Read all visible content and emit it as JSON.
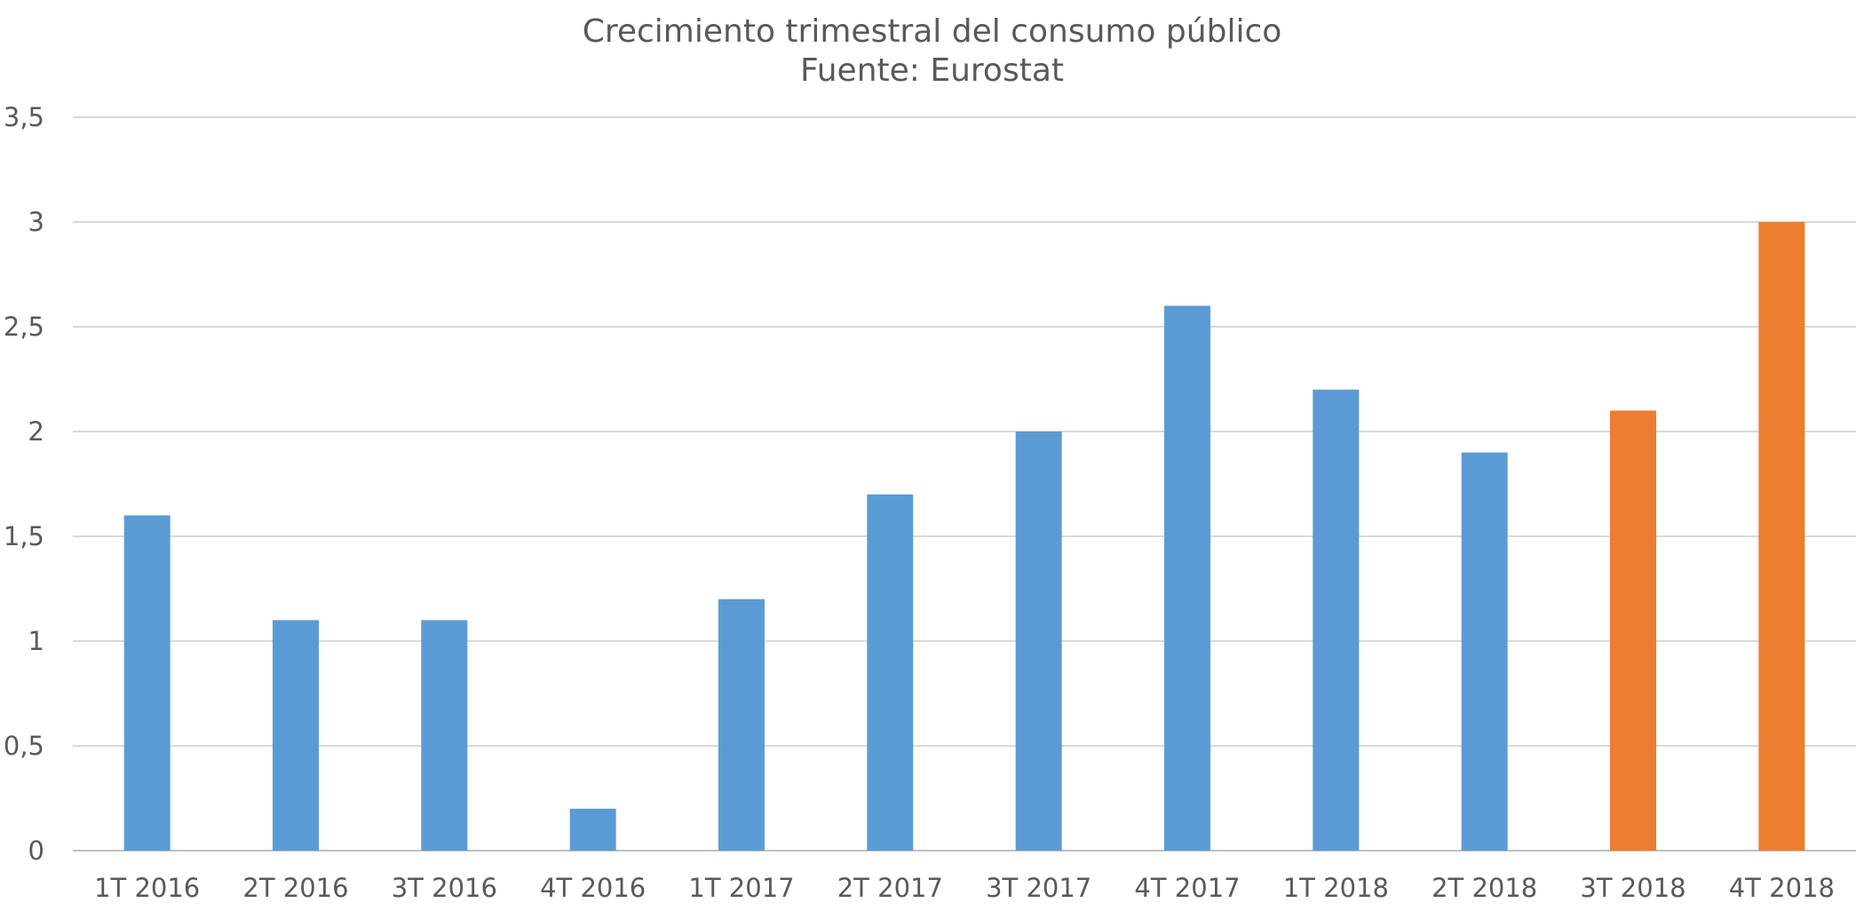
{
  "chart_data": {
    "type": "bar",
    "title": "Crecimiento trimestral del consumo público",
    "subtitle": "Fuente: Eurostat",
    "xlabel": "",
    "ylabel": "",
    "categories": [
      "1T 2016",
      "2T 2016",
      "3T 2016",
      "4T 2016",
      "1T 2017",
      "2T 2017",
      "3T 2017",
      "4T 2017",
      "1T 2018",
      "2T 2018",
      "3T 2018",
      "4T 2018"
    ],
    "values": [
      1.6,
      1.1,
      1.1,
      0.2,
      1.2,
      1.7,
      2.0,
      2.6,
      2.2,
      1.9,
      2.1,
      3.0
    ],
    "bar_colors": [
      "#5b9bd5",
      "#5b9bd5",
      "#5b9bd5",
      "#5b9bd5",
      "#5b9bd5",
      "#5b9bd5",
      "#5b9bd5",
      "#5b9bd5",
      "#5b9bd5",
      "#5b9bd5",
      "#ed7d31",
      "#ed7d31"
    ],
    "ylim": [
      0,
      3.5
    ],
    "yticks": [
      0,
      0.5,
      1,
      1.5,
      2,
      2.5,
      3,
      3.5
    ],
    "ytick_labels": [
      "0",
      "0,5",
      "1",
      "1,5",
      "2",
      "2,5",
      "3",
      "3,5"
    ],
    "grid": true,
    "legend": "none"
  }
}
